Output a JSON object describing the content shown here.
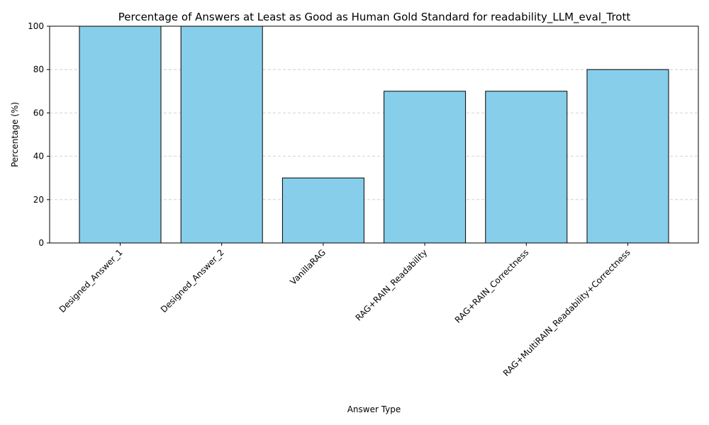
{
  "chart_data": {
    "type": "bar",
    "title": "Percentage of Answers at Least as Good as Human Gold Standard for readability_LLM_eval_Trott",
    "xlabel": "Answer Type",
    "ylabel": "Percentage (%)",
    "categories": [
      "Designed_Answer_1",
      "Designed_Answer_2",
      "VanillaRAG",
      "RAG+RAIN_Readability",
      "RAG+RAIN_Correctness",
      "RAG+MultiRAIN_Readability+Correctness"
    ],
    "values": [
      100,
      100,
      30,
      70,
      70,
      80
    ],
    "ylim": [
      0,
      100
    ],
    "yticks": [
      0,
      20,
      40,
      60,
      80,
      100
    ],
    "grid": "y-dashed",
    "bar_color": "#87ceeb",
    "edge_color": "#000000"
  }
}
